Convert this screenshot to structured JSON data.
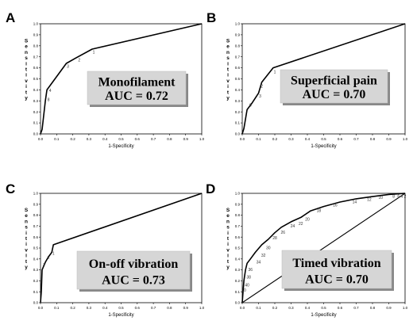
{
  "chart_data": [
    {
      "type": "line",
      "panel": "A",
      "title": "Monofilament",
      "auc_text": "AUC = 0.72",
      "xlabel": "1-Specificity",
      "ylabel": "Sensitivity",
      "xlim": [
        0,
        1
      ],
      "ylim": [
        0,
        1
      ],
      "xticks": [
        "0.0",
        "0.1",
        "0.2",
        "0.3",
        "0.4",
        "0.5",
        "0.6",
        "0.7",
        "0.8",
        "0.9",
        "1.0"
      ],
      "yticks": [
        "0.0",
        "0.1",
        "0.2",
        "0.3",
        "0.4",
        "0.5",
        "0.6",
        "0.7",
        "0.8",
        "0.9",
        "1.0"
      ],
      "grid": false,
      "diagonal": false,
      "points": [
        [
          0,
          0
        ],
        [
          0.01,
          0.04
        ],
        [
          0.03,
          0.3
        ],
        [
          0.04,
          0.4
        ],
        [
          0.16,
          0.64
        ],
        [
          0.22,
          0.69
        ],
        [
          0.32,
          0.77
        ],
        [
          1,
          1
        ]
      ],
      "point_labels": [
        {
          "text": "8",
          "x": 0.05,
          "y": 0.3
        },
        {
          "text": "4",
          "x": 0.06,
          "y": 0.38
        },
        {
          "text": "3",
          "x": 0.17,
          "y": 0.6
        },
        {
          "text": "2",
          "x": 0.24,
          "y": 0.66
        },
        {
          "text": "1",
          "x": 0.33,
          "y": 0.73
        }
      ]
    },
    {
      "type": "line",
      "panel": "B",
      "title": "Superficial pain",
      "auc_text": "AUC = 0.70",
      "xlabel": "1-Specificity",
      "ylabel": "Sensitivity",
      "xlim": [
        0,
        1
      ],
      "ylim": [
        0,
        1
      ],
      "xticks": [
        "0.0",
        "0.1",
        "0.2",
        "0.3",
        "0.4",
        "0.5",
        "0.6",
        "0.7",
        "0.8",
        "0.9",
        "1.0"
      ],
      "yticks": [
        "0.0",
        "0.1",
        "0.2",
        "0.3",
        "0.4",
        "0.5",
        "0.6",
        "0.7",
        "0.8",
        "0.9",
        "1.0"
      ],
      "grid": false,
      "diagonal": false,
      "points": [
        [
          0,
          0
        ],
        [
          0.01,
          0.05
        ],
        [
          0.03,
          0.22
        ],
        [
          0.06,
          0.28
        ],
        [
          0.1,
          0.37
        ],
        [
          0.12,
          0.47
        ],
        [
          0.19,
          0.6
        ],
        [
          1,
          1
        ]
      ],
      "point_labels": [
        {
          "text": "6",
          "x": 0.05,
          "y": 0.25
        },
        {
          "text": "3",
          "x": 0.11,
          "y": 0.33
        },
        {
          "text": "2",
          "x": 0.12,
          "y": 0.42
        },
        {
          "text": "1",
          "x": 0.2,
          "y": 0.55
        }
      ]
    },
    {
      "type": "line",
      "panel": "C",
      "title": "On-off  vibration",
      "auc_text": "AUC = 0.73",
      "xlabel": "1-Specificity",
      "ylabel": "Sensitivity",
      "xlim": [
        0,
        1
      ],
      "ylim": [
        0,
        1
      ],
      "xticks": [
        "0.0",
        "0.1",
        "0.2",
        "0.3",
        "0.4",
        "0.5",
        "0.6",
        "0.7",
        "0.8",
        "0.9",
        "1.0"
      ],
      "yticks": [
        "0.0",
        "0.1",
        "0.2",
        "0.3",
        "0.4",
        "0.5",
        "0.6",
        "0.7",
        "0.8",
        "0.9",
        "1.0"
      ],
      "grid": false,
      "diagonal": false,
      "points": [
        [
          0,
          0
        ],
        [
          0.005,
          0.1
        ],
        [
          0.01,
          0.3
        ],
        [
          0.03,
          0.37
        ],
        [
          0.05,
          0.42
        ],
        [
          0.07,
          0.46
        ],
        [
          0.08,
          0.53
        ],
        [
          1,
          1
        ]
      ],
      "point_labels": [
        {
          "text": "3",
          "x": 0.02,
          "y": 0.33
        },
        {
          "text": "2",
          "x": 0.05,
          "y": 0.4
        },
        {
          "text": "1",
          "x": 0.08,
          "y": 0.44
        }
      ]
    },
    {
      "type": "line",
      "panel": "D",
      "title": "Timed vibration",
      "auc_text": "AUC = 0.70",
      "xlabel": "1-Specificity",
      "ylabel": "Sensitivity",
      "xlim": [
        0,
        1
      ],
      "ylim": [
        0,
        1
      ],
      "xticks": [
        "0.0",
        "0.1",
        "0.2",
        "0.3",
        "0.4",
        "0.5",
        "0.6",
        "0.7",
        "0.8",
        "0.9",
        "1.0"
      ],
      "yticks": [
        "0.0",
        "0.1",
        "0.2",
        "0.3",
        "0.4",
        "0.5",
        "0.6",
        "0.7",
        "0.8",
        "0.9",
        "1.0"
      ],
      "grid": false,
      "diagonal": true,
      "points": [
        [
          0,
          0
        ],
        [
          0.005,
          0.1
        ],
        [
          0.01,
          0.2
        ],
        [
          0.02,
          0.3
        ],
        [
          0.03,
          0.36
        ],
        [
          0.05,
          0.4
        ],
        [
          0.08,
          0.46
        ],
        [
          0.12,
          0.53
        ],
        [
          0.16,
          0.58
        ],
        [
          0.2,
          0.64
        ],
        [
          0.24,
          0.69
        ],
        [
          0.3,
          0.74
        ],
        [
          0.36,
          0.78
        ],
        [
          0.42,
          0.84
        ],
        [
          0.5,
          0.88
        ],
        [
          0.6,
          0.92
        ],
        [
          0.7,
          0.95
        ],
        [
          0.8,
          0.97
        ],
        [
          0.9,
          0.99
        ],
        [
          1,
          1
        ]
      ],
      "point_labels": [
        {
          "text": "50",
          "x": 0.01,
          "y": 0.1
        },
        {
          "text": "40",
          "x": 0.03,
          "y": 0.15
        },
        {
          "text": "38",
          "x": 0.04,
          "y": 0.22
        },
        {
          "text": "36",
          "x": 0.05,
          "y": 0.29
        },
        {
          "text": "34",
          "x": 0.1,
          "y": 0.36
        },
        {
          "text": "32",
          "x": 0.13,
          "y": 0.42
        },
        {
          "text": "30",
          "x": 0.16,
          "y": 0.49
        },
        {
          "text": "28",
          "x": 0.2,
          "y": 0.58
        },
        {
          "text": "26",
          "x": 0.25,
          "y": 0.63
        },
        {
          "text": "24",
          "x": 0.31,
          "y": 0.69
        },
        {
          "text": "22",
          "x": 0.36,
          "y": 0.71
        },
        {
          "text": "20",
          "x": 0.4,
          "y": 0.75
        },
        {
          "text": "18",
          "x": 0.47,
          "y": 0.83
        },
        {
          "text": "16",
          "x": 0.57,
          "y": 0.88
        },
        {
          "text": "14",
          "x": 0.69,
          "y": 0.91
        },
        {
          "text": "12",
          "x": 0.78,
          "y": 0.93
        },
        {
          "text": "10",
          "x": 0.85,
          "y": 0.95
        },
        {
          "text": "8",
          "x": 0.93,
          "y": 0.96
        },
        {
          "text": "6",
          "x": 0.96,
          "y": 0.96
        },
        {
          "text": "4",
          "x": 0.98,
          "y": 0.96
        },
        {
          "text": "2",
          "x": 1.0,
          "y": 0.96
        }
      ]
    }
  ]
}
